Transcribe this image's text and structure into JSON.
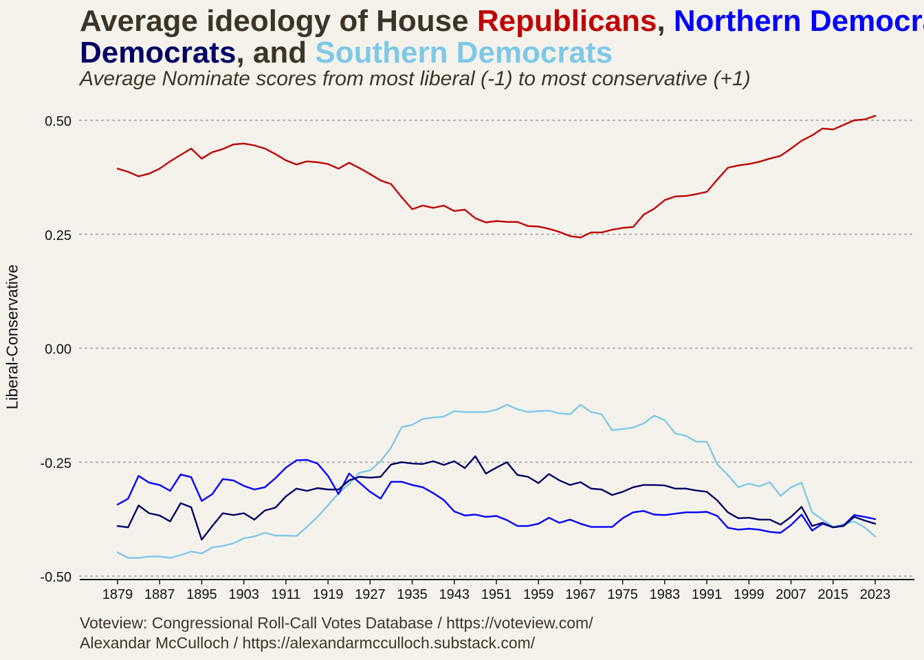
{
  "title": {
    "part1": "Average ideology of House ",
    "rep": "Republicans",
    "comma1": ", ",
    "north": "Northern Democrats",
    "comma2": ", ",
    "all": "Democrats",
    "and": ", and ",
    "south": "Southern Democrats"
  },
  "subtitle": "Average Nominate scores from most liberal (-1) to most conservative (+1)",
  "caption": {
    "line1": "Voteview: Congressional Roll-Call Votes Database / https://voteview.com/",
    "line2": "Alexandar McCulloch / https://alexandarmcculloch.substack.com/"
  },
  "chart_data": {
    "type": "line",
    "title": "Average ideology of House Republicans, Northern Democrats, Democrats, and Southern Democrats",
    "subtitle": "Average Nominate scores from most liberal (-1) to most conservative (+1)",
    "xlabel": "",
    "ylabel": "Liberal-Conservative",
    "xlim": [
      1879,
      2023
    ],
    "ylim": [
      -0.5,
      0.5
    ],
    "x_ticks": [
      1879,
      1887,
      1895,
      1903,
      1911,
      1919,
      1927,
      1935,
      1943,
      1951,
      1959,
      1967,
      1975,
      1983,
      1991,
      1999,
      2007,
      2015,
      2023
    ],
    "y_ticks": [
      -0.5,
      -0.25,
      0,
      0.25,
      0.5
    ],
    "y_tick_labels": [
      "-0.50",
      "-0.25",
      "0.00",
      "0.25",
      "0.50"
    ],
    "grid": "horizontal dotted",
    "legend": "none (series named in title)",
    "colors": {
      "Republicans": "#c00000",
      "Northern Democrats": "#0000ff",
      "Democrats": "#000066",
      "Southern Democrats": "#7ec8e8"
    },
    "x": [
      1879,
      1881,
      1883,
      1885,
      1887,
      1889,
      1891,
      1893,
      1895,
      1897,
      1899,
      1901,
      1903,
      1905,
      1907,
      1909,
      1911,
      1913,
      1915,
      1917,
      1919,
      1921,
      1923,
      1925,
      1927,
      1929,
      1931,
      1933,
      1935,
      1937,
      1939,
      1941,
      1943,
      1945,
      1947,
      1949,
      1951,
      1953,
      1955,
      1957,
      1959,
      1961,
      1963,
      1965,
      1967,
      1969,
      1971,
      1973,
      1975,
      1977,
      1979,
      1981,
      1983,
      1985,
      1987,
      1989,
      1991,
      1993,
      1995,
      1997,
      1999,
      2001,
      2003,
      2005,
      2007,
      2009,
      2011,
      2013,
      2015,
      2017,
      2019,
      2021,
      2023
    ],
    "series": [
      {
        "name": "Republicans",
        "values": [
          0.394,
          0.387,
          0.377,
          0.383,
          0.394,
          0.41,
          0.424,
          0.438,
          0.416,
          0.43,
          0.437,
          0.447,
          0.449,
          0.445,
          0.438,
          0.426,
          0.412,
          0.403,
          0.41,
          0.408,
          0.404,
          0.394,
          0.407,
          0.395,
          0.382,
          0.368,
          0.36,
          0.331,
          0.305,
          0.313,
          0.308,
          0.313,
          0.301,
          0.304,
          0.285,
          0.276,
          0.279,
          0.277,
          0.277,
          0.268,
          0.267,
          0.262,
          0.255,
          0.246,
          0.243,
          0.254,
          0.254,
          0.26,
          0.264,
          0.266,
          0.293,
          0.306,
          0.325,
          0.333,
          0.334,
          0.338,
          0.343,
          0.37,
          0.396,
          0.401,
          0.404,
          0.409,
          0.416,
          0.422,
          0.438,
          0.455,
          0.467,
          0.482,
          0.48,
          0.49,
          0.5,
          0.502,
          0.51
        ]
      },
      {
        "name": "Northern Democrats",
        "values": [
          -0.343,
          -0.33,
          -0.28,
          -0.295,
          -0.3,
          -0.313,
          -0.277,
          -0.283,
          -0.335,
          -0.32,
          -0.287,
          -0.29,
          -0.302,
          -0.31,
          -0.305,
          -0.285,
          -0.262,
          -0.246,
          -0.245,
          -0.253,
          -0.28,
          -0.32,
          -0.275,
          -0.295,
          -0.315,
          -0.33,
          -0.293,
          -0.293,
          -0.3,
          -0.305,
          -0.318,
          -0.333,
          -0.358,
          -0.367,
          -0.365,
          -0.37,
          -0.368,
          -0.377,
          -0.39,
          -0.39,
          -0.385,
          -0.372,
          -0.383,
          -0.376,
          -0.385,
          -0.392,
          -0.392,
          -0.392,
          -0.373,
          -0.36,
          -0.357,
          -0.365,
          -0.366,
          -0.363,
          -0.36,
          -0.36,
          -0.359,
          -0.368,
          -0.394,
          -0.398,
          -0.396,
          -0.398,
          -0.403,
          -0.405,
          -0.388,
          -0.365,
          -0.4,
          -0.385,
          -0.393,
          -0.389,
          -0.366,
          -0.37,
          -0.375
        ]
      },
      {
        "name": "Democrats",
        "values": [
          -0.39,
          -0.393,
          -0.345,
          -0.362,
          -0.367,
          -0.38,
          -0.34,
          -0.349,
          -0.42,
          -0.39,
          -0.362,
          -0.366,
          -0.362,
          -0.376,
          -0.356,
          -0.35,
          -0.325,
          -0.308,
          -0.313,
          -0.307,
          -0.31,
          -0.31,
          -0.29,
          -0.282,
          -0.284,
          -0.282,
          -0.255,
          -0.25,
          -0.253,
          -0.254,
          -0.248,
          -0.256,
          -0.248,
          -0.263,
          -0.237,
          -0.275,
          -0.262,
          -0.25,
          -0.278,
          -0.282,
          -0.296,
          -0.276,
          -0.29,
          -0.3,
          -0.294,
          -0.308,
          -0.31,
          -0.322,
          -0.315,
          -0.305,
          -0.3,
          -0.3,
          -0.301,
          -0.308,
          -0.308,
          -0.312,
          -0.315,
          -0.334,
          -0.36,
          -0.373,
          -0.372,
          -0.376,
          -0.376,
          -0.387,
          -0.37,
          -0.348,
          -0.39,
          -0.383,
          -0.393,
          -0.39,
          -0.37,
          -0.378,
          -0.385
        ]
      },
      {
        "name": "Southern Democrats",
        "values": [
          -0.448,
          -0.46,
          -0.46,
          -0.457,
          -0.457,
          -0.46,
          -0.454,
          -0.446,
          -0.45,
          -0.437,
          -0.434,
          -0.428,
          -0.417,
          -0.413,
          -0.405,
          -0.411,
          -0.411,
          -0.412,
          -0.392,
          -0.37,
          -0.345,
          -0.318,
          -0.298,
          -0.273,
          -0.268,
          -0.248,
          -0.218,
          -0.173,
          -0.168,
          -0.155,
          -0.152,
          -0.15,
          -0.138,
          -0.14,
          -0.14,
          -0.14,
          -0.135,
          -0.124,
          -0.134,
          -0.14,
          -0.138,
          -0.137,
          -0.143,
          -0.145,
          -0.124,
          -0.14,
          -0.145,
          -0.18,
          -0.177,
          -0.174,
          -0.165,
          -0.148,
          -0.158,
          -0.187,
          -0.192,
          -0.205,
          -0.205,
          -0.255,
          -0.278,
          -0.305,
          -0.297,
          -0.303,
          -0.294,
          -0.324,
          -0.305,
          -0.295,
          -0.36,
          -0.376,
          -0.392,
          -0.386,
          -0.38,
          -0.393,
          -0.413
        ]
      }
    ]
  }
}
